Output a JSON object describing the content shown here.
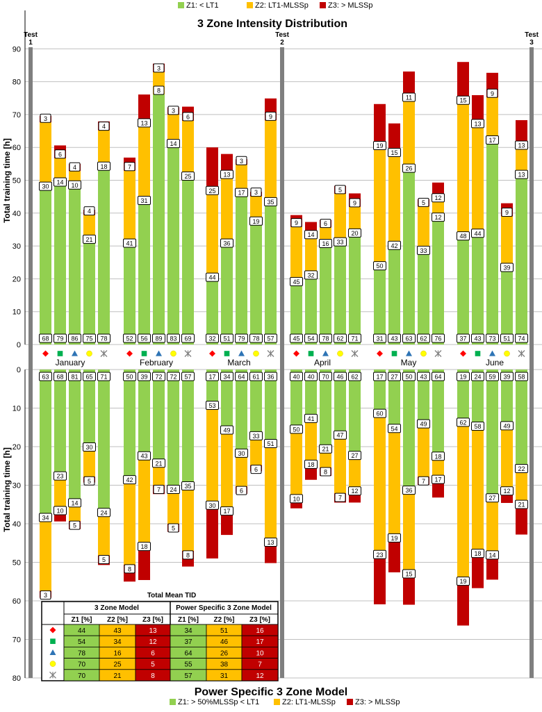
{
  "chart_data": [
    {
      "type": "stacked-bar",
      "title": "3 Zone Intensity Distribution",
      "ylabel": "Total training time [h]",
      "ylim": [
        0,
        90
      ],
      "yticks": [
        "0",
        "10",
        "20",
        "30",
        "40",
        "50",
        "60",
        "70",
        "80",
        "90"
      ],
      "legend": [
        {
          "label": "Z1: < LT1",
          "color": "#92d050"
        },
        {
          "label": "Z2: LT1-MLSSp",
          "color": "#ffc000"
        },
        {
          "label": "Z3: > MLSSp",
          "color": "#c00000"
        }
      ],
      "months": [
        "January",
        "February",
        "March",
        "April",
        "May",
        "June"
      ],
      "tests": [
        {
          "label": "Test",
          "num": "1"
        },
        {
          "label": "Test",
          "num": "2"
        },
        {
          "label": "Test",
          "num": "3"
        }
      ],
      "bars": [
        {
          "z1": 46.9,
          "z2": 20.7,
          "z3": 2.0,
          "p1": "68",
          "p2": "30",
          "p3": "3"
        },
        {
          "z1": 48.2,
          "z2": 8.5,
          "z3": 3.9,
          "p1": "79",
          "p2": "14",
          "p3": "6"
        },
        {
          "z1": 47.3,
          "z2": 5.5,
          "z3": 2.2,
          "p1": "86",
          "p2": "10",
          "p3": "4"
        },
        {
          "z1": 30.8,
          "z2": 8.6,
          "z3": 1.6,
          "p1": "75",
          "p2": "21",
          "p3": "4"
        },
        {
          "z1": 53.0,
          "z2": 12.2,
          "z3": 2.7,
          "p1": "78",
          "p2": "18",
          "p3": "4"
        },
        {
          "z1": 29.6,
          "z2": 23.3,
          "z3": 4.0,
          "p1": "52",
          "p2": "41",
          "p3": "7"
        },
        {
          "z1": 42.6,
          "z2": 23.6,
          "z3": 9.9,
          "p1": "56",
          "p2": "31",
          "p3": "13"
        },
        {
          "z1": 76.1,
          "z2": 6.8,
          "z3": 2.6,
          "p1": "89",
          "p2": "8",
          "p3": "3"
        },
        {
          "z1": 59.9,
          "z2": 10.1,
          "z3": 2.2,
          "p1": "83",
          "p2": "14",
          "p3": "3"
        },
        {
          "z1": 50.0,
          "z2": 18.1,
          "z3": 4.3,
          "p1": "69",
          "p2": "25",
          "p3": "6"
        },
        {
          "z1": 19.2,
          "z2": 26.4,
          "z3": 14.4,
          "p1": "32",
          "p2": "44",
          "p3": "25"
        },
        {
          "z1": 29.6,
          "z2": 20.9,
          "z3": 7.5,
          "p1": "51",
          "p2": "36",
          "p3": "13"
        },
        {
          "z1": 45.0,
          "z2": 9.7,
          "z3": 1.7,
          "p1": "79",
          "p2": "17",
          "p3": "3"
        },
        {
          "z1": 36.3,
          "z2": 8.8,
          "z3": 1.4,
          "p1": "78",
          "p2": "19",
          "p3": "3"
        },
        {
          "z1": 42.2,
          "z2": 26.0,
          "z3": 6.7,
          "p1": "57",
          "p2": "35",
          "p3": "9"
        },
        {
          "z1": 17.9,
          "z2": 17.9,
          "z3": 3.6,
          "p1": "45",
          "p2": "45",
          "p3": "9"
        },
        {
          "z1": 19.9,
          "z2": 12.3,
          "z3": 5.1,
          "p1": "54",
          "p2": "32",
          "p3": "14"
        },
        {
          "z1": 29.5,
          "z2": 6.1,
          "z3": 2.3,
          "p1": "78",
          "p2": "16",
          "p3": "6"
        },
        {
          "z1": 30.0,
          "z2": 15.9,
          "z3": 2.4,
          "p1": "62",
          "p2": "33",
          "p3": "5"
        },
        {
          "z1": 32.7,
          "z2": 9.2,
          "z3": 4.1,
          "p1": "71",
          "p2": "20",
          "p3": "9"
        },
        {
          "z1": 22.7,
          "z2": 36.6,
          "z3": 13.9,
          "p1": "31",
          "p2": "50",
          "p3": "19"
        },
        {
          "z1": 28.9,
          "z2": 28.3,
          "z3": 10.1,
          "p1": "43",
          "p2": "42",
          "p3": "15"
        },
        {
          "z1": 52.4,
          "z2": 21.6,
          "z3": 9.1,
          "p1": "63",
          "p2": "26",
          "p3": "11"
        },
        {
          "z1": 27.4,
          "z2": 14.6,
          "z3": 2.2,
          "p1": "62",
          "p2": "33",
          "p3": "5"
        },
        {
          "z1": 37.5,
          "z2": 5.9,
          "z3": 5.9,
          "p1": "76",
          "p2": "12",
          "p3": "12"
        },
        {
          "z1": 31.8,
          "z2": 41.3,
          "z3": 12.9,
          "p1": "37",
          "p2": "48",
          "p3": "15"
        },
        {
          "z1": 32.6,
          "z2": 33.4,
          "z3": 9.9,
          "p1": "43",
          "p2": "44",
          "p3": "13"
        },
        {
          "z1": 61.0,
          "z2": 14.2,
          "z3": 7.5,
          "p1": "73",
          "p2": "17",
          "p3": "9"
        },
        {
          "z1": 22.2,
          "z2": 16.8,
          "z3": 4.0,
          "p1": "51",
          "p2": "39",
          "p3": "9"
        },
        {
          "z1": 50.5,
          "z2": 8.9,
          "z3": 8.9,
          "p1": "74",
          "p2": "13",
          "p3": "13"
        }
      ]
    },
    {
      "type": "stacked-bar",
      "title": "Power Specific 3 Zone Model",
      "ylabel": "Total training time [h]",
      "ylim": [
        0,
        80
      ],
      "yticks": [
        "0",
        "10",
        "20",
        "30",
        "40",
        "50",
        "60",
        "70",
        "80"
      ],
      "legend": [
        {
          "label": "Z1: > 50%MLSSp < LT1",
          "color": "#92d050"
        },
        {
          "label": "Z2: LT1-MLSSp",
          "color": "#ffc000"
        },
        {
          "label": "Z3: > MLSSp",
          "color": "#c00000"
        }
      ],
      "bars": [
        {
          "z1": 37.3,
          "z2": 20.1,
          "z3": 1.8,
          "p1": "63",
          "p2": "34",
          "p3": "3"
        },
        {
          "z1": 26.5,
          "z2": 9.0,
          "z3": 3.9,
          "p1": "68",
          "p2": "23",
          "p3": "10"
        },
        {
          "z1": 33.5,
          "z2": 5.8,
          "z3": 2.1,
          "p1": "81",
          "p2": "14",
          "p3": "5"
        },
        {
          "z1": 19.0,
          "z2": 8.8,
          "z3": 1.5,
          "p1": "65",
          "p2": "30",
          "p3": "5"
        },
        {
          "z1": 36.0,
          "z2": 12.2,
          "z3": 2.5,
          "p1": "71",
          "p2": "24",
          "p3": "5"
        },
        {
          "z1": 27.5,
          "z2": 23.1,
          "z3": 4.4,
          "p1": "50",
          "p2": "42",
          "p3": "8"
        },
        {
          "z1": 21.3,
          "z2": 23.5,
          "z3": 9.8,
          "p1": "39",
          "p2": "43",
          "p3": "18"
        },
        {
          "z1": 23.2,
          "z2": 6.8,
          "z3": 2.3,
          "p1": "72",
          "p2": "21",
          "p3": "7"
        },
        {
          "z1": 30.0,
          "z2": 10.0,
          "z3": 2.1,
          "p1": "72",
          "p2": "24",
          "p3": "5"
        },
        {
          "z1": 29.1,
          "z2": 17.9,
          "z3": 4.1,
          "p1": "57",
          "p2": "35",
          "p3": "8"
        },
        {
          "z1": 8.2,
          "z2": 25.9,
          "z3": 14.9,
          "p1": "17",
          "p2": "53",
          "p3": "30"
        },
        {
          "z1": 14.6,
          "z2": 21.0,
          "z3": 7.3,
          "p1": "34",
          "p2": "49",
          "p3": "17"
        },
        {
          "z1": 20.6,
          "z2": 9.7,
          "z3": 1.9,
          "p1": "64",
          "p2": "30",
          "p3": "6"
        },
        {
          "z1": 16.1,
          "z2": 8.7,
          "z3": 1.6,
          "p1": "61",
          "p2": "33",
          "p3": "6"
        },
        {
          "z1": 18.1,
          "z2": 25.6,
          "z3": 6.5,
          "p1": "36",
          "p2": "51",
          "p3": "13"
        },
        {
          "z1": 14.4,
          "z2": 18.0,
          "z3": 3.6,
          "p1": "40",
          "p2": "50",
          "p3": "10"
        },
        {
          "z1": 11.6,
          "z2": 11.9,
          "z3": 5.1,
          "p1": "40",
          "p2": "41",
          "p3": "18"
        },
        {
          "z1": 19.5,
          "z2": 5.9,
          "z3": 2.2,
          "p1": "70",
          "p2": "21",
          "p3": "8"
        },
        {
          "z1": 15.9,
          "z2": 16.2,
          "z3": 2.4,
          "p1": "46",
          "p2": "47",
          "p3": "7"
        },
        {
          "z1": 21.2,
          "z2": 9.2,
          "z3": 4.1,
          "p1": "62",
          "p2": "27",
          "p3": "12"
        },
        {
          "z1": 10.3,
          "z2": 36.6,
          "z3": 14.0,
          "p1": "17",
          "p2": "60",
          "p3": "23"
        },
        {
          "z1": 14.2,
          "z2": 28.4,
          "z3": 10.0,
          "p1": "27",
          "p2": "54",
          "p3": "19"
        },
        {
          "z1": 30.2,
          "z2": 21.7,
          "z3": 9.1,
          "p1": "50",
          "p2": "36",
          "p3": "15"
        },
        {
          "z1": 13.0,
          "z2": 14.8,
          "z3": 2.1,
          "p1": "43",
          "p2": "49",
          "p3": "7"
        },
        {
          "z1": 21.4,
          "z2": 6.0,
          "z3": 5.8,
          "p1": "64",
          "p2": "18",
          "p3": "17"
        },
        {
          "z1": 12.6,
          "z2": 41.2,
          "z3": 12.6,
          "p1": "19",
          "p2": "62",
          "p3": "19"
        },
        {
          "z1": 13.6,
          "z2": 33.0,
          "z3": 10.1,
          "p1": "24",
          "p2": "58",
          "p3": "18"
        },
        {
          "z1": 32.2,
          "z2": 14.8,
          "z3": 7.5,
          "p1": "59",
          "p2": "27",
          "p3": "14"
        },
        {
          "z1": 13.5,
          "z2": 16.9,
          "z3": 4.2,
          "p1": "39",
          "p2": "49",
          "p3": "12"
        },
        {
          "z1": 24.6,
          "z2": 9.3,
          "z3": 8.9,
          "p1": "58",
          "p2": "22",
          "p3": "21"
        }
      ]
    }
  ],
  "symbols": [
    {
      "name": "diamond",
      "color": "#ff0000"
    },
    {
      "name": "square",
      "color": "#00b050"
    },
    {
      "name": "triangle",
      "color": "#2e74b5"
    },
    {
      "name": "circle",
      "color": "#ffff00"
    },
    {
      "name": "asterisk",
      "color": "#7f7f7f"
    }
  ],
  "table": {
    "title": "Total Mean TID",
    "group_3zone": "3 Zone Model",
    "group_power": "Power Specific 3 Zone Model",
    "col_headers": [
      "Z1 [%]",
      "Z2 [%]",
      "Z3 [%]",
      "Z1 [%]",
      "Z2 [%]",
      "Z3 [%]"
    ],
    "rows": [
      [
        "44",
        "43",
        "13",
        "34",
        "51",
        "16"
      ],
      [
        "54",
        "34",
        "12",
        "37",
        "46",
        "17"
      ],
      [
        "78",
        "16",
        "6",
        "64",
        "26",
        "10"
      ],
      [
        "70",
        "25",
        "5",
        "55",
        "38",
        "7"
      ],
      [
        "70",
        "21",
        "8",
        "57",
        "31",
        "12"
      ]
    ]
  }
}
